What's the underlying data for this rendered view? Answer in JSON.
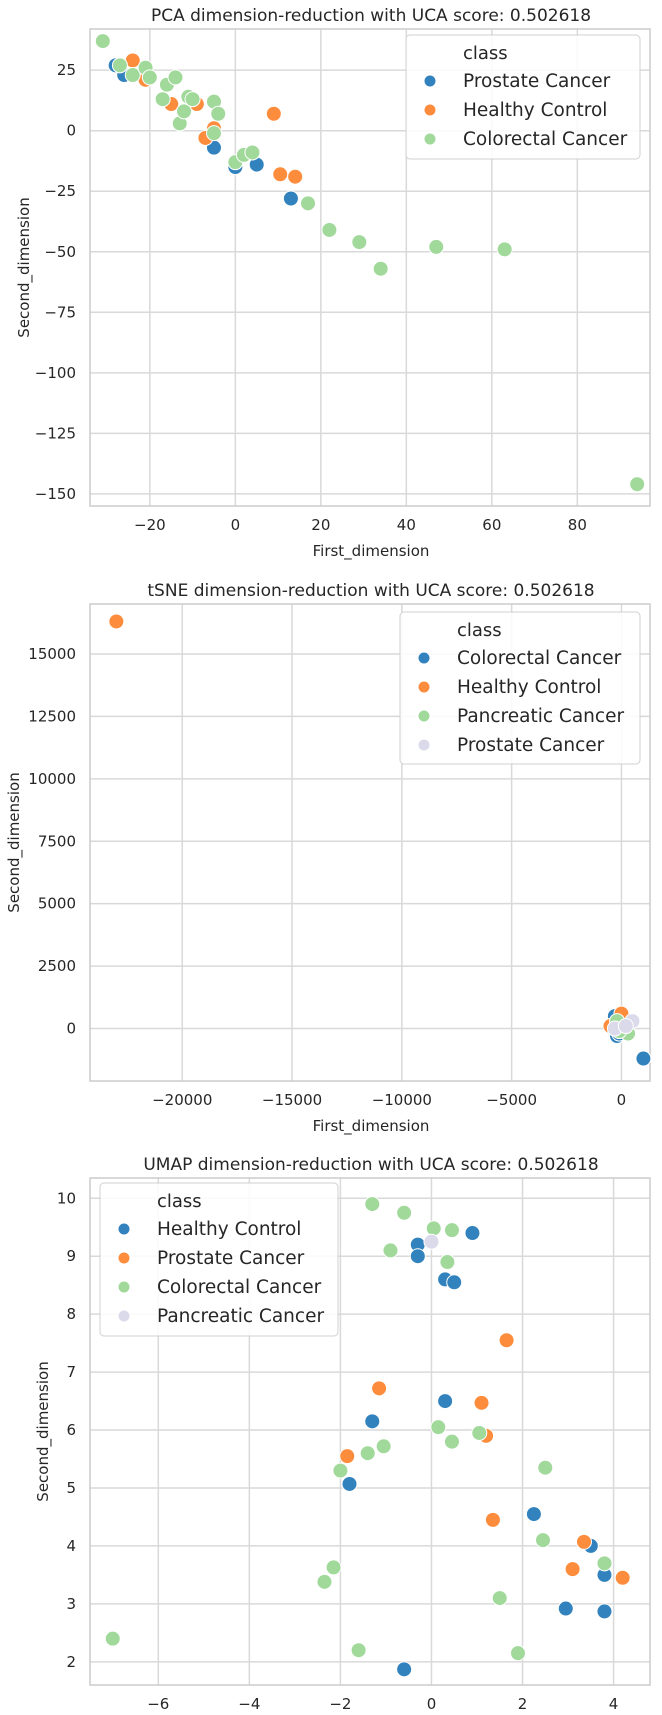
{
  "chart_data": [
    {
      "type": "scatter",
      "title": "PCA dimension-reduction with UCA score: 0.502618",
      "xlabel": "First_dimension",
      "ylabel": "Second_dimension",
      "xlim": [
        -34,
        97
      ],
      "ylim": [
        -155,
        42
      ],
      "xticks": [
        -20,
        0,
        20,
        40,
        60,
        80
      ],
      "yticks": [
        25,
        0,
        -25,
        -50,
        -75,
        -100,
        -125,
        -150
      ],
      "xtick_labels": [
        "−20",
        "0",
        "20",
        "40",
        "60",
        "80"
      ],
      "ytick_labels": [
        "25",
        "0",
        "−25",
        "−50",
        "−75",
        "−100",
        "−125",
        "−150"
      ],
      "grid": true,
      "legend": {
        "title": "class",
        "placement": "top-right"
      },
      "series": [
        {
          "name": "Prostate Cancer",
          "color": "#3182bd",
          "points": [
            [
              -28,
              27
            ],
            [
              -26,
              23
            ],
            [
              -22,
              23
            ],
            [
              0,
              -15
            ],
            [
              -5,
              -7
            ],
            [
              5,
              -14
            ],
            [
              13,
              -28
            ]
          ]
        },
        {
          "name": "Healthy Control",
          "color": "#fd8d3c",
          "points": [
            [
              -24,
              29
            ],
            [
              -21,
              21
            ],
            [
              -15,
              11
            ],
            [
              -9,
              11
            ],
            [
              -5,
              1
            ],
            [
              -7,
              -3
            ],
            [
              9,
              7
            ],
            [
              10.5,
              -18
            ],
            [
              14,
              -19
            ]
          ]
        },
        {
          "name": "Colorectal Cancer",
          "color": "#a1d99b",
          "points": [
            [
              -31,
              37
            ],
            [
              -27,
              27
            ],
            [
              -24,
              23
            ],
            [
              -21,
              26
            ],
            [
              -20,
              22
            ],
            [
              -17,
              13
            ],
            [
              -16,
              19
            ],
            [
              -14,
              22
            ],
            [
              -13,
              3
            ],
            [
              -12,
              8
            ],
            [
              -11,
              14
            ],
            [
              -10,
              13
            ],
            [
              -5,
              12
            ],
            [
              -5,
              -1
            ],
            [
              -4,
              7
            ],
            [
              0,
              -13
            ],
            [
              2,
              -10
            ],
            [
              4,
              -9
            ],
            [
              17,
              -30
            ],
            [
              22,
              -41
            ],
            [
              29,
              -46
            ],
            [
              34,
              -57
            ],
            [
              47,
              -48
            ],
            [
              63,
              -49
            ],
            [
              94,
              -146
            ]
          ]
        }
      ]
    },
    {
      "type": "scatter",
      "title": "tSNE dimension-reduction with UCA score: 0.502618",
      "xlabel": "First_dimension",
      "ylabel": "Second_dimension",
      "xlim": [
        -24200,
        1300
      ],
      "ylim": [
        -2100,
        17000
      ],
      "xticks": [
        -20000,
        -15000,
        -10000,
        -5000,
        0
      ],
      "yticks": [
        15000,
        12500,
        10000,
        7500,
        5000,
        2500,
        0
      ],
      "xtick_labels": [
        "−20000",
        "−15000",
        "−10000",
        "−5000",
        "0"
      ],
      "ytick_labels": [
        "15000",
        "12500",
        "10000",
        "7500",
        "5000",
        "2500",
        "0"
      ],
      "grid": true,
      "legend": {
        "title": "class",
        "placement": "top-right"
      },
      "series": [
        {
          "name": "Colorectal Cancer",
          "color": "#3182bd",
          "points": [
            [
              -300,
              500
            ],
            [
              -200,
              -300
            ],
            [
              0,
              200
            ],
            [
              -400,
              100
            ],
            [
              100,
              -100
            ],
            [
              -100,
              -200
            ],
            [
              1000,
              -1200
            ]
          ]
        },
        {
          "name": "Healthy Control",
          "color": "#fd8d3c",
          "points": [
            [
              -23000,
              16300
            ],
            [
              -500,
              100
            ],
            [
              0,
              600
            ],
            [
              200,
              -100
            ]
          ]
        },
        {
          "name": "Pancreatic Cancer",
          "color": "#a1d99b",
          "points": [
            [
              -200,
              300
            ],
            [
              100,
              0
            ],
            [
              300,
              -200
            ],
            [
              -100,
              -100
            ]
          ]
        },
        {
          "name": "Prostate Cancer",
          "color": "#dadaeb",
          "points": [
            [
              500,
              300
            ],
            [
              -300,
              0
            ],
            [
              200,
              100
            ]
          ]
        }
      ]
    },
    {
      "type": "scatter",
      "title": "UMAP dimension-reduction with UCA score: 0.502618",
      "xlabel": "First_dimension",
      "ylabel": "Second_dimension",
      "xlim": [
        -7.5,
        4.8
      ],
      "ylim": [
        1.6,
        10.35
      ],
      "xticks": [
        -6,
        -4,
        -2,
        0,
        2,
        4
      ],
      "yticks": [
        10,
        9,
        8,
        7,
        6,
        5,
        4,
        3,
        2
      ],
      "xtick_labels": [
        "−6",
        "−4",
        "−2",
        "0",
        "2",
        "4"
      ],
      "ytick_labels": [
        "10",
        "9",
        "8",
        "7",
        "6",
        "5",
        "4",
        "3",
        "2"
      ],
      "grid": true,
      "legend": {
        "title": "class",
        "placement": "top-left"
      },
      "series": [
        {
          "name": "Healthy Control",
          "color": "#3182bd",
          "points": [
            [
              -0.3,
              9.2
            ],
            [
              -0.3,
              9.0
            ],
            [
              0.9,
              9.4
            ],
            [
              0.3,
              8.6
            ],
            [
              0.5,
              8.55
            ],
            [
              0.3,
              6.5
            ],
            [
              -1.3,
              6.15
            ],
            [
              -1.8,
              5.07
            ],
            [
              2.25,
              4.55
            ],
            [
              3.5,
              4.0
            ],
            [
              3.8,
              3.5
            ],
            [
              2.95,
              2.92
            ],
            [
              3.8,
              2.87
            ],
            [
              -0.6,
              1.87
            ]
          ]
        },
        {
          "name": "Prostate Cancer",
          "color": "#fd8d3c",
          "points": [
            [
              1.65,
              7.55
            ],
            [
              -1.15,
              6.72
            ],
            [
              1.1,
              6.47
            ],
            [
              1.2,
              5.9
            ],
            [
              -1.85,
              5.55
            ],
            [
              1.35,
              4.45
            ],
            [
              3.35,
              4.07
            ],
            [
              3.1,
              3.6
            ],
            [
              4.2,
              3.45
            ]
          ]
        },
        {
          "name": "Colorectal Cancer",
          "color": "#a1d99b",
          "points": [
            [
              -1.3,
              9.9
            ],
            [
              -0.6,
              9.75
            ],
            [
              0.05,
              9.48
            ],
            [
              0.45,
              9.45
            ],
            [
              -0.9,
              9.1
            ],
            [
              0.35,
              8.9
            ],
            [
              0.15,
              6.05
            ],
            [
              1.05,
              5.95
            ],
            [
              -1.05,
              5.72
            ],
            [
              0.45,
              5.8
            ],
            [
              -1.4,
              5.6
            ],
            [
              -2.0,
              5.3
            ],
            [
              2.5,
              5.35
            ],
            [
              2.45,
              4.1
            ],
            [
              3.8,
              3.7
            ],
            [
              -2.15,
              3.63
            ],
            [
              -2.35,
              3.38
            ],
            [
              1.5,
              3.1
            ],
            [
              -7.0,
              2.4
            ],
            [
              -1.6,
              2.2
            ],
            [
              1.9,
              2.15
            ]
          ]
        },
        {
          "name": "Pancreatic Cancer",
          "color": "#dadaeb",
          "points": [
            [
              0.0,
              9.25
            ]
          ]
        }
      ]
    }
  ]
}
